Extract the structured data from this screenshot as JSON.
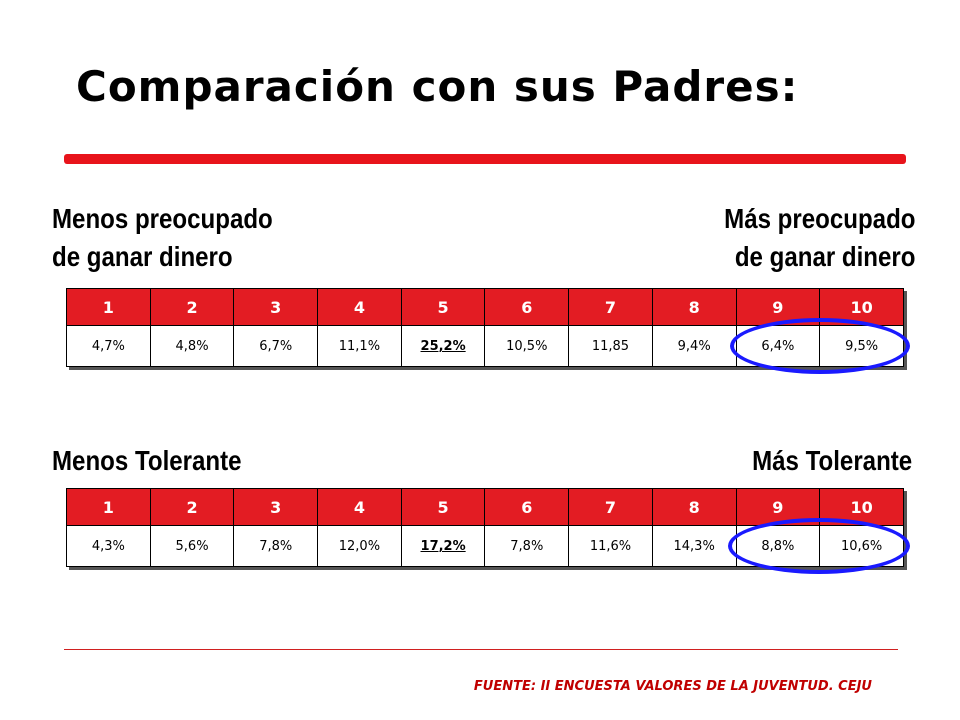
{
  "title": "Comparación con sus Padres:",
  "accent_color": "#e31c23",
  "circle_color": "#1a1aff",
  "section1": {
    "left_label_line1": "Menos preocupado",
    "left_label_line2": "de ganar dinero",
    "right_label_line1": "Más preocupado",
    "right_label_line2": "de ganar dinero",
    "headers": [
      "1",
      "2",
      "3",
      "4",
      "5",
      "6",
      "7",
      "8",
      "9",
      "10"
    ],
    "values": [
      "4,7%",
      "4,8%",
      "6,7%",
      "11,1%",
      "25,2%",
      "10,5%",
      "11,85",
      "9,4%",
      "6,4%",
      "9,5%"
    ],
    "highlighted_index": 4,
    "circled_columns": [
      9,
      10
    ]
  },
  "section2": {
    "left_label": "Menos Tolerante",
    "right_label": "Más Tolerante",
    "headers": [
      "1",
      "2",
      "3",
      "4",
      "5",
      "6",
      "7",
      "8",
      "9",
      "10"
    ],
    "values": [
      "4,3%",
      "5,6%",
      "7,8%",
      "12,0%",
      "17,2%",
      "7,8%",
      "11,6%",
      "14,3%",
      "8,8%",
      "10,6%"
    ],
    "highlighted_index": 4,
    "circled_columns": [
      9,
      10
    ]
  },
  "footer": {
    "source": "FUENTE: II ENCUESTA VALORES DE LA JUVENTUD. CEJU"
  }
}
